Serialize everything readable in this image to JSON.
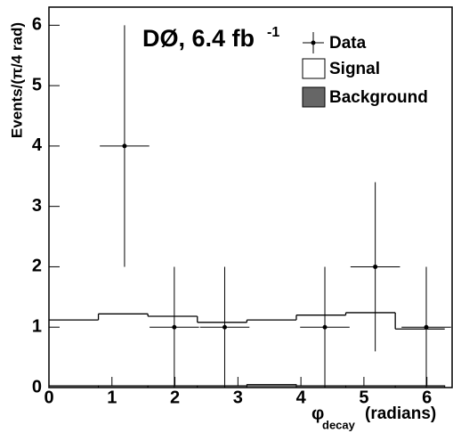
{
  "chart_data": {
    "type": "histogram",
    "title": "DØ, 6.4 fb",
    "title_superscript": "-1",
    "x_label": "φ",
    "x_label_subscript": "decay",
    "x_label_unit": "(radians)",
    "y_label": "Events/(π/4 rad)",
    "bins": [
      0,
      0.785,
      1.571,
      2.356,
      3.142,
      3.927,
      4.712,
      5.498,
      6.283
    ],
    "xlim": [
      0,
      6.4
    ],
    "ylim": [
      0,
      6.3
    ],
    "xticks": [
      0,
      1,
      2,
      3,
      4,
      5,
      6
    ],
    "yticks": [
      0,
      1,
      2,
      3,
      4,
      5,
      6
    ],
    "series": [
      {
        "name": "Signal",
        "color": "#ffffff",
        "values": [
          1.12,
          1.22,
          1.18,
          1.08,
          1.12,
          1.2,
          1.24,
          0.97
        ]
      },
      {
        "name": "Background",
        "color": "#666666",
        "values": [
          0.03,
          0.03,
          0.03,
          0.03,
          0.05,
          0.03,
          0.03,
          0.03
        ]
      }
    ],
    "points": {
      "name": "Data",
      "color": "#000000",
      "x": [
        1.2,
        1.99,
        2.79,
        4.38,
        5.18,
        5.99
      ],
      "values": [
        4,
        1,
        1,
        1,
        2,
        1
      ],
      "errors": [
        2,
        1,
        1,
        1,
        1.4,
        1
      ]
    }
  }
}
